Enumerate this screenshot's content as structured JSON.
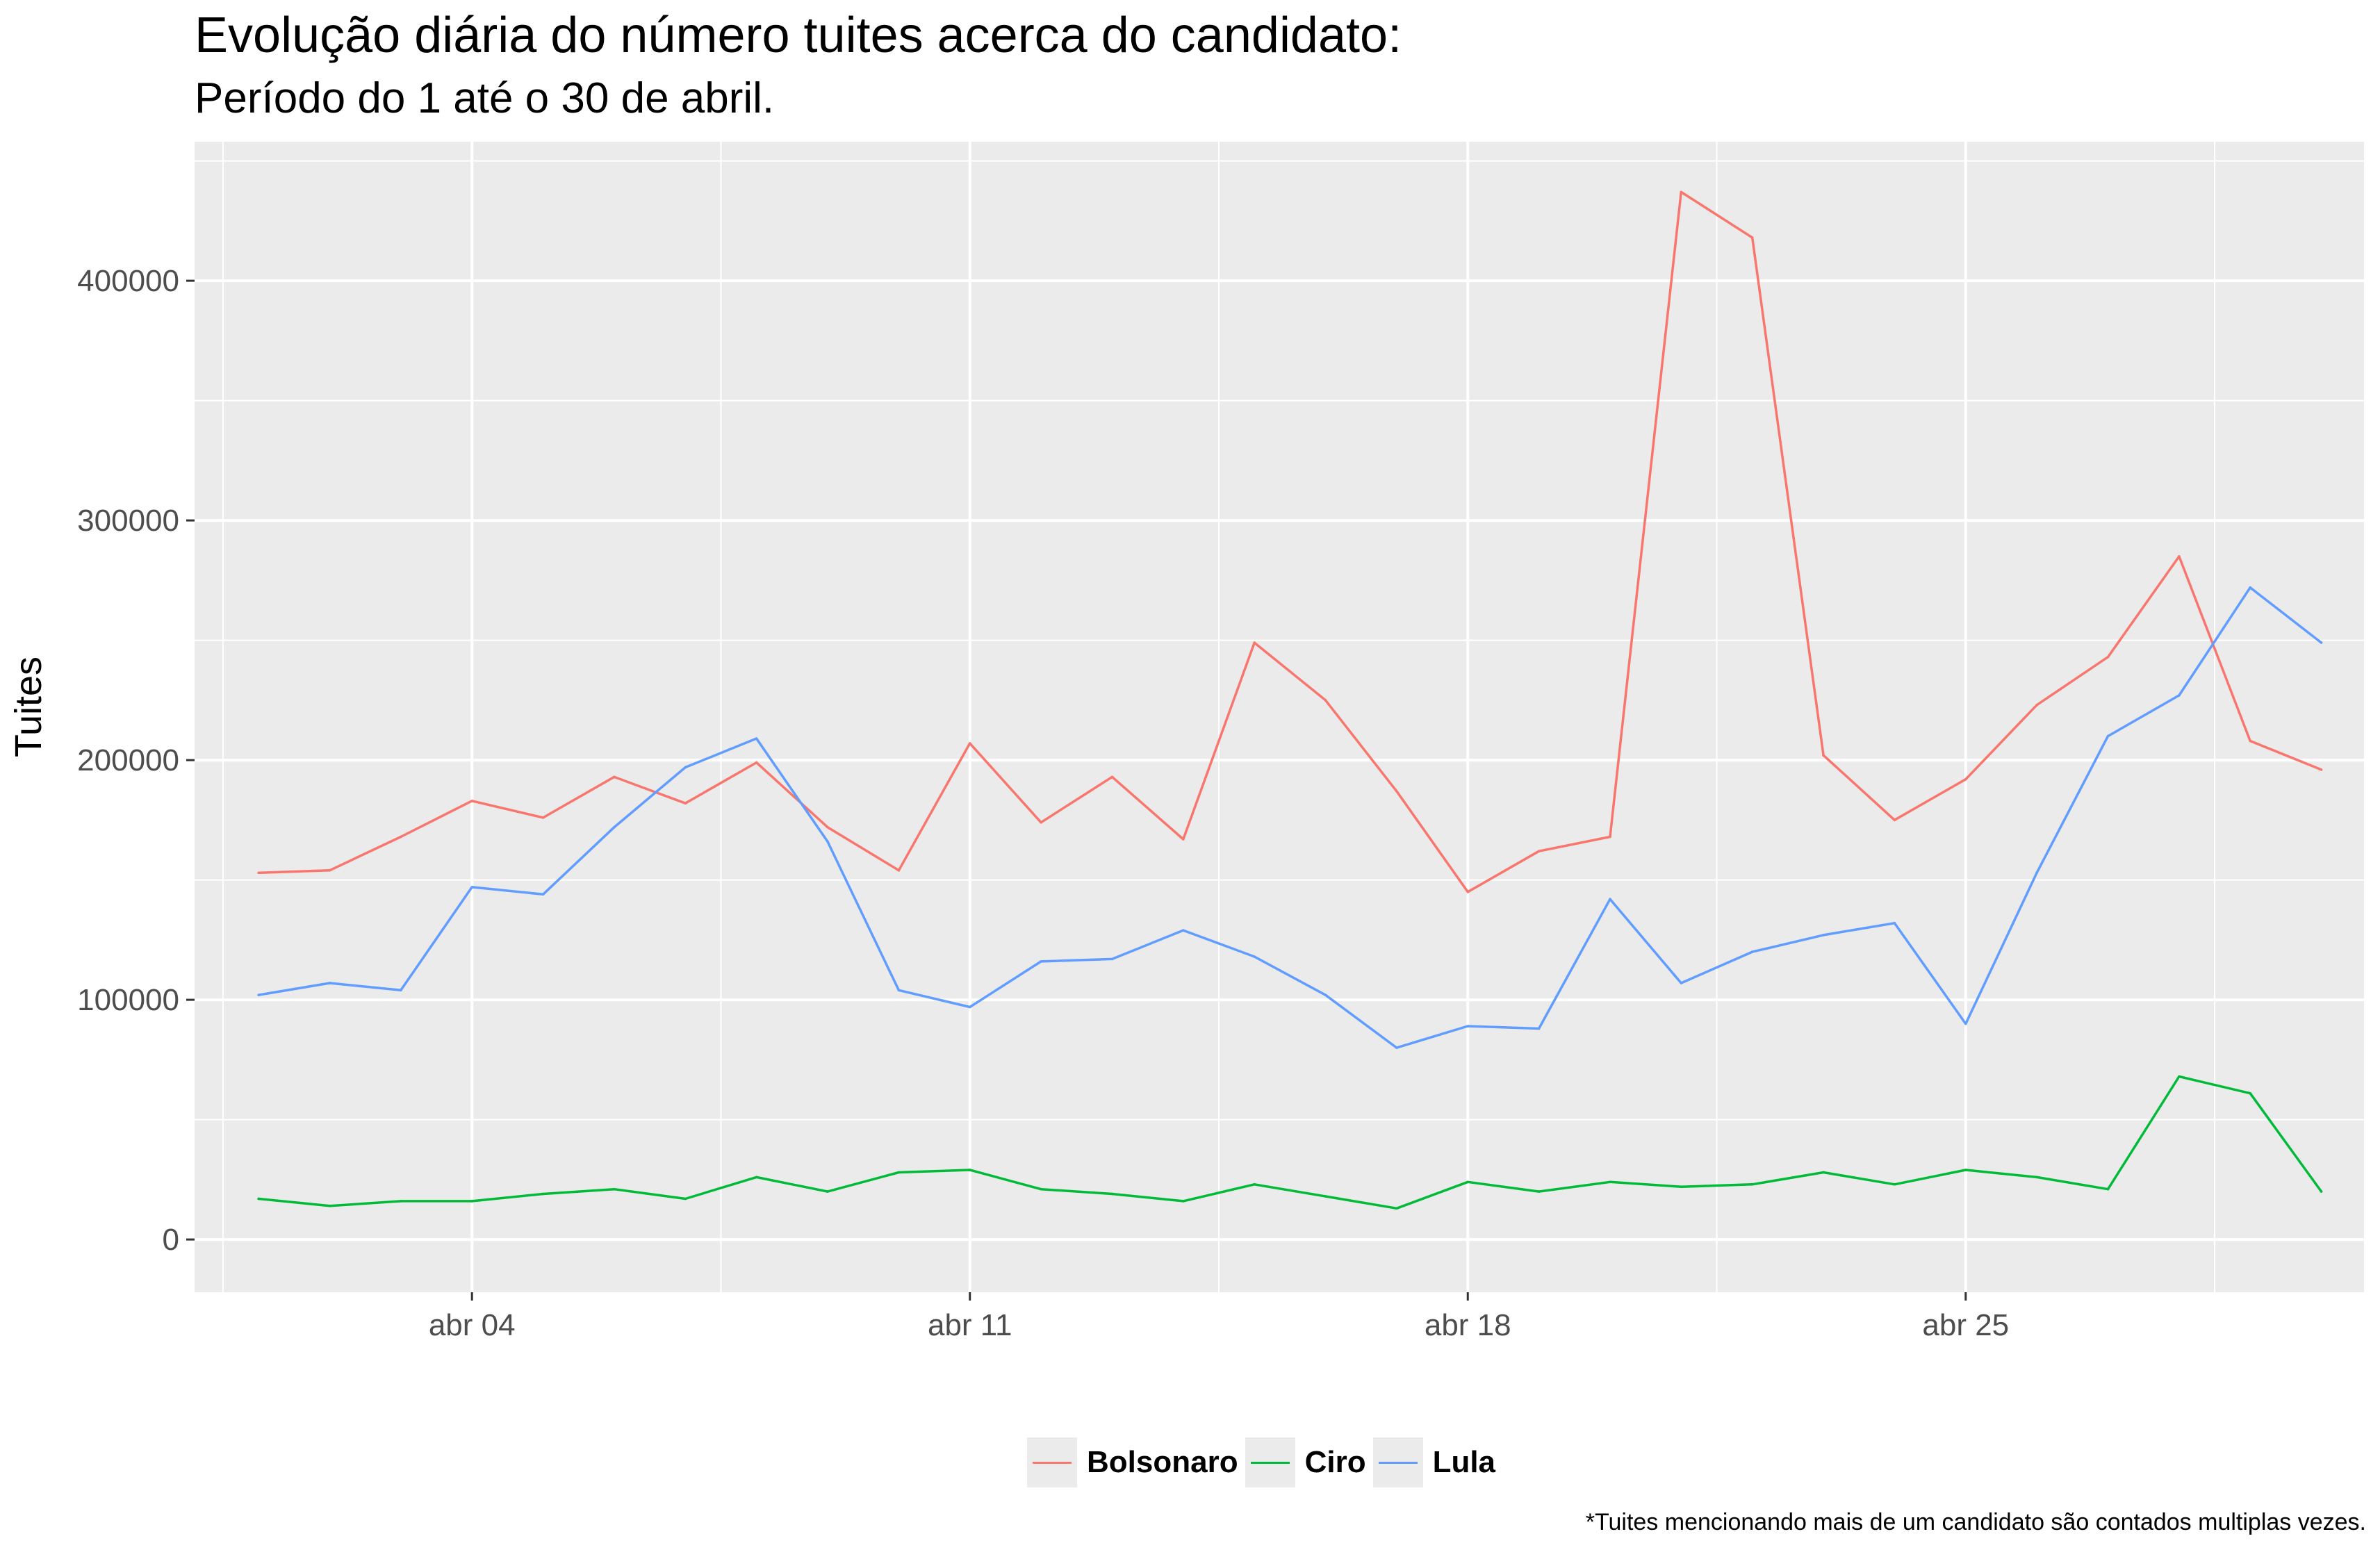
{
  "title": "Evolução diária do número tuites acerca do candidato:",
  "subtitle": "Período do 1 até o 30 de abril.",
  "caption": "*Tuites mencionando mais de um candidato são contados multiplas vezes.",
  "chart_data": {
    "type": "line",
    "ylabel": "Tuites",
    "xlabel": "",
    "x_tick_labels": [
      "abr 04",
      "abr 11",
      "abr 18",
      "abr 25"
    ],
    "x_tick_days": [
      4,
      11,
      18,
      25
    ],
    "y_ticks": [
      0,
      100000,
      200000,
      300000,
      400000
    ],
    "xlim": [
      0.1,
      30.6
    ],
    "ylim": [
      -22000,
      458000
    ],
    "grid": true,
    "legend_position": "bottom",
    "x_days": [
      1,
      2,
      3,
      4,
      5,
      6,
      7,
      8,
      9,
      10,
      11,
      12,
      13,
      14,
      15,
      16,
      17,
      18,
      19,
      20,
      21,
      22,
      23,
      24,
      25,
      26,
      27,
      28,
      29,
      30
    ],
    "series": [
      {
        "name": "Bolsonaro",
        "color": "#F8766D",
        "values": [
          153000,
          154000,
          168000,
          183000,
          176000,
          193000,
          182000,
          199000,
          172000,
          154000,
          207000,
          174000,
          193000,
          167000,
          249000,
          225000,
          187000,
          145000,
          162000,
          168000,
          437000,
          418000,
          202000,
          175000,
          192000,
          223000,
          243000,
          285000,
          208000,
          196000
        ]
      },
      {
        "name": "Ciro",
        "color": "#00BA38",
        "values": [
          17000,
          14000,
          16000,
          16000,
          19000,
          21000,
          17000,
          26000,
          20000,
          28000,
          29000,
          21000,
          19000,
          16000,
          23000,
          18000,
          13000,
          24000,
          20000,
          24000,
          22000,
          23000,
          28000,
          23000,
          29000,
          26000,
          21000,
          68000,
          61000,
          20000
        ]
      },
      {
        "name": "Lula",
        "color": "#619CFF",
        "values": [
          102000,
          107000,
          104000,
          147000,
          144000,
          172000,
          197000,
          209000,
          166000,
          104000,
          97000,
          116000,
          117000,
          129000,
          118000,
          102000,
          80000,
          89000,
          88000,
          142000,
          107000,
          120000,
          127000,
          132000,
          90000,
          153000,
          210000,
          227000,
          272000,
          249000
        ]
      }
    ]
  }
}
